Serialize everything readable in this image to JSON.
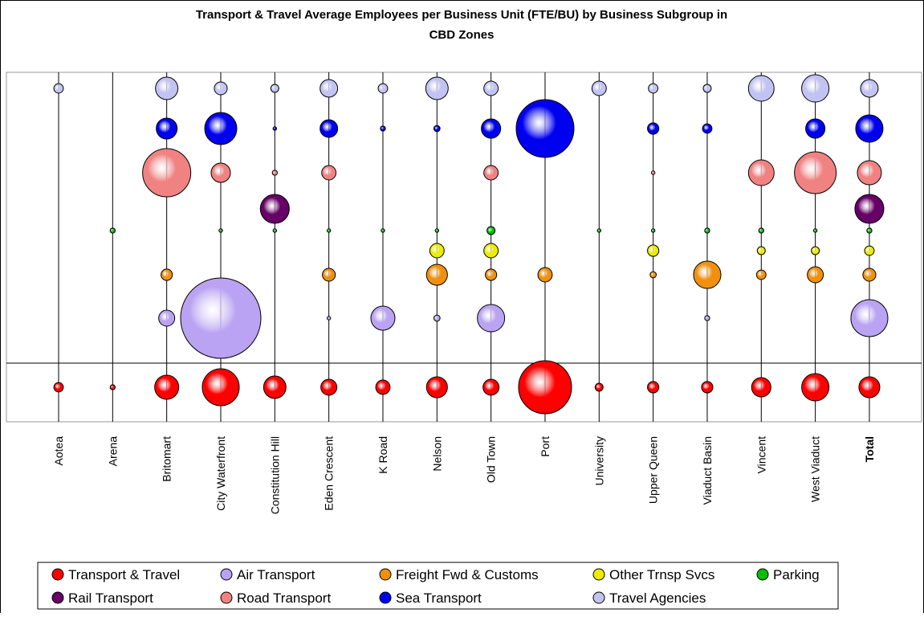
{
  "chart_data": {
    "type": "bubble",
    "title": [
      "Transport & Travel Average Employees per Business Unit (FTE/BU) by Business Subgroup in",
      "CBD Zones"
    ],
    "categories": [
      "Aotea",
      "Arena",
      "Britomart",
      "City Waterfront",
      "Constitution Hill",
      "Eden Crescent",
      "K Road",
      "Nelson",
      "Old Town",
      "Port",
      "University",
      "Upper Queen",
      "Viaduct Basin",
      "Vincent",
      "West Viaduct",
      "Total"
    ],
    "series": [
      {
        "name": "Transport & Travel",
        "color": "#ff0000",
        "values": [
          1.4,
          0.4,
          9,
          21.2,
          7.8,
          4,
          3.2,
          6.8,
          4,
          43.6,
          1,
          2,
          2,
          5.8,
          11.6,
          6.8
        ]
      },
      {
        "name": "Air Transport",
        "color": "#b9a3f2",
        "values": [
          null,
          null,
          4,
          100,
          null,
          0.2,
          9,
          0.6,
          11.6,
          null,
          null,
          null,
          0.4,
          null,
          null,
          21.2
        ]
      },
      {
        "name": "Freight Fwd & Customs",
        "color": "#f0900f",
        "values": [
          null,
          null,
          2,
          null,
          null,
          2.6,
          null,
          6.8,
          2,
          3.2,
          null,
          0.6,
          11.6,
          1.4,
          4,
          2.6
        ]
      },
      {
        "name": "Other Trnsp Svcs",
        "color": "#ecec00",
        "values": [
          null,
          null,
          null,
          null,
          null,
          null,
          null,
          3.2,
          3.2,
          null,
          null,
          2,
          null,
          1,
          1,
          1.4
        ]
      },
      {
        "name": "Parking",
        "color": "#00c000",
        "values": [
          null,
          0.4,
          null,
          0.2,
          0.2,
          0.2,
          0.2,
          0.2,
          1,
          null,
          0.2,
          0.2,
          0.4,
          0.4,
          0.2,
          0.4
        ]
      },
      {
        "name": "Rail Transport",
        "color": "#660066",
        "values": [
          null,
          null,
          null,
          null,
          13,
          null,
          null,
          null,
          null,
          null,
          null,
          null,
          null,
          null,
          null,
          13
        ]
      },
      {
        "name": "Road Transport",
        "color": "#f08282",
        "values": [
          null,
          null,
          36,
          5.8,
          0.4,
          3.2,
          null,
          null,
          3.2,
          null,
          null,
          0.2,
          null,
          10.2,
          27,
          9
        ]
      },
      {
        "name": "Sea Transport",
        "color": "#0000f0",
        "values": [
          null,
          null,
          6.8,
          16,
          0.2,
          4.8,
          0.4,
          0.6,
          5.8,
          51.8,
          null,
          2,
          1.4,
          null,
          5.8,
          11.6
        ]
      },
      {
        "name": "Travel Agencies",
        "color": "#c3c3f3",
        "values": [
          1.4,
          null,
          7.8,
          2.6,
          1,
          4.8,
          1.4,
          7.8,
          3.2,
          null,
          3.2,
          1.4,
          1,
          10.2,
          11.6,
          4.8
        ]
      }
    ]
  }
}
